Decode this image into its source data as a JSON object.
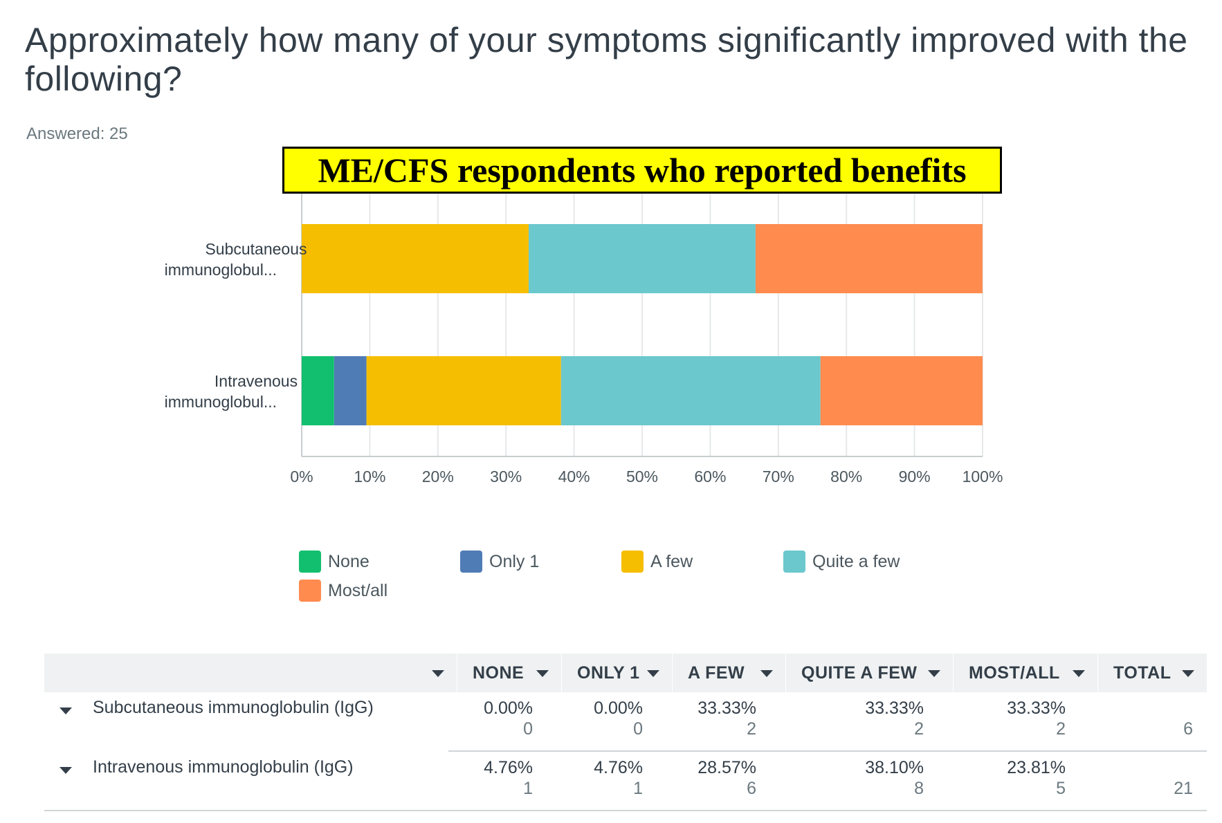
{
  "question": "Approximately how many of your symptoms significantly improved with the following?",
  "answered": "Answered: 25",
  "annotation": "ME/CFS respondents who reported benefits",
  "chart_data": {
    "type": "bar",
    "orientation": "horizontal-stacked-100",
    "categories": [
      "Subcutaneous immunoglobul...",
      "Intravenous immunoglobul..."
    ],
    "series": [
      {
        "name": "None",
        "color": "#12bf6e",
        "values": [
          0.0,
          4.76
        ]
      },
      {
        "name": "Only 1",
        "color": "#507cb6",
        "values": [
          0.0,
          4.76
        ]
      },
      {
        "name": "A few",
        "color": "#f6be00",
        "values": [
          33.33,
          28.57
        ]
      },
      {
        "name": "Quite a few",
        "color": "#6bc8cd",
        "values": [
          33.33,
          38.1
        ]
      },
      {
        "name": "Most/all",
        "color": "#ff8b4f",
        "values": [
          33.33,
          23.81
        ]
      }
    ],
    "x_ticks": [
      "0%",
      "10%",
      "20%",
      "30%",
      "40%",
      "50%",
      "60%",
      "70%",
      "80%",
      "90%",
      "100%"
    ],
    "xlim": [
      0,
      100
    ],
    "grid": true,
    "legend": "bottom"
  },
  "table": {
    "headers": [
      "",
      "NONE",
      "ONLY 1",
      "A FEW",
      "QUITE A FEW",
      "MOST/ALL",
      "TOTAL"
    ],
    "rows": [
      {
        "label": "Subcutaneous immunoglobulin (IgG)",
        "cells": [
          {
            "pct": "0.00%",
            "count": "0"
          },
          {
            "pct": "0.00%",
            "count": "0"
          },
          {
            "pct": "33.33%",
            "count": "2"
          },
          {
            "pct": "33.33%",
            "count": "2"
          },
          {
            "pct": "33.33%",
            "count": "2"
          }
        ],
        "total": "6"
      },
      {
        "label": "Intravenous immunoglobulin (IgG)",
        "cells": [
          {
            "pct": "4.76%",
            "count": "1"
          },
          {
            "pct": "4.76%",
            "count": "1"
          },
          {
            "pct": "28.57%",
            "count": "6"
          },
          {
            "pct": "38.10%",
            "count": "8"
          },
          {
            "pct": "23.81%",
            "count": "5"
          }
        ],
        "total": "21"
      }
    ]
  }
}
